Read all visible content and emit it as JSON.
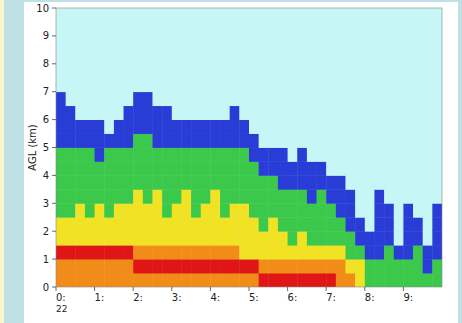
{
  "chart_data": {
    "type": "heatmap",
    "ylabel": "AGL (km)",
    "xlim": [
      0,
      10
    ],
    "xticks": [
      {
        "value": 0,
        "label": "0:"
      },
      {
        "value": 1,
        "label": "1:"
      },
      {
        "value": 2,
        "label": "2:"
      },
      {
        "value": 3,
        "label": "3:"
      },
      {
        "value": 4,
        "label": "4:"
      },
      {
        "value": 5,
        "label": "5:"
      },
      {
        "value": 6,
        "label": "6:"
      },
      {
        "value": 7,
        "label": "7:"
      },
      {
        "value": 8,
        "label": "8:"
      },
      {
        "value": 9,
        "label": "9:"
      }
    ],
    "ylim": [
      0,
      10
    ],
    "yticks": [
      0,
      1,
      2,
      3,
      4,
      5,
      6,
      7,
      8,
      9,
      10
    ],
    "annotations": [
      {
        "text": "22",
        "x": 0
      }
    ],
    "colors": [
      "#c6f6f6",
      "#2a3cd6",
      "#3cc84a",
      "#f2e224",
      "#f28c18",
      "#e01616"
    ],
    "xbins": [
      0,
      0.25,
      0.5,
      0.75,
      1,
      1.25,
      1.5,
      1.75,
      2,
      2.25,
      2.5,
      2.75,
      3,
      3.25,
      3.5,
      3.75,
      4,
      4.25,
      4.5,
      4.75,
      5,
      5.25,
      5.5,
      5.75,
      6,
      6.25,
      6.5,
      6.75,
      7,
      7.25,
      7.5,
      7.75,
      8,
      8.25,
      8.5,
      8.75,
      9,
      9.25,
      9.5,
      9.75,
      10
    ],
    "ybins": [
      0,
      0.5,
      1,
      1.5,
      2,
      2.5,
      3,
      3.5,
      4,
      4.5,
      5,
      5.5,
      6,
      6.5,
      7,
      7.5
    ],
    "z": [
      [
        4,
        4,
        5,
        3,
        3,
        2,
        2,
        2,
        2,
        2,
        1,
        1,
        1,
        1,
        0
      ],
      [
        4,
        4,
        5,
        3,
        3,
        2,
        2,
        2,
        2,
        2,
        1,
        1,
        1,
        0,
        0
      ],
      [
        4,
        4,
        5,
        3,
        3,
        3,
        2,
        2,
        2,
        2,
        1,
        1,
        0,
        0,
        0
      ],
      [
        4,
        4,
        5,
        3,
        3,
        2,
        2,
        2,
        2,
        2,
        1,
        1,
        0,
        0,
        0
      ],
      [
        4,
        4,
        5,
        3,
        3,
        3,
        2,
        2,
        2,
        1,
        1,
        1,
        0,
        0,
        0
      ],
      [
        4,
        4,
        5,
        3,
        3,
        2,
        2,
        2,
        2,
        2,
        1,
        0,
        0,
        0,
        0
      ],
      [
        4,
        4,
        5,
        3,
        3,
        3,
        2,
        2,
        2,
        2,
        1,
        1,
        0,
        0,
        0
      ],
      [
        4,
        4,
        5,
        3,
        3,
        3,
        2,
        2,
        2,
        2,
        1,
        1,
        1,
        0,
        0
      ],
      [
        4,
        5,
        4,
        3,
        3,
        3,
        3,
        2,
        2,
        2,
        2,
        1,
        1,
        1,
        0
      ],
      [
        4,
        5,
        4,
        3,
        3,
        3,
        2,
        2,
        2,
        2,
        2,
        1,
        1,
        1,
        0
      ],
      [
        4,
        5,
        4,
        3,
        3,
        3,
        3,
        2,
        2,
        2,
        1,
        1,
        1,
        0,
        0
      ],
      [
        4,
        5,
        4,
        3,
        3,
        2,
        2,
        2,
        2,
        2,
        1,
        1,
        1,
        0,
        0
      ],
      [
        4,
        5,
        4,
        3,
        3,
        3,
        2,
        2,
        2,
        2,
        1,
        1,
        0,
        0,
        0
      ],
      [
        4,
        5,
        4,
        3,
        3,
        3,
        3,
        2,
        2,
        2,
        1,
        1,
        0,
        0,
        0
      ],
      [
        4,
        5,
        4,
        3,
        3,
        2,
        2,
        2,
        2,
        2,
        1,
        1,
        0,
        0,
        0
      ],
      [
        4,
        5,
        4,
        3,
        3,
        3,
        2,
        2,
        2,
        2,
        1,
        1,
        0,
        0,
        0
      ],
      [
        4,
        5,
        4,
        3,
        3,
        3,
        3,
        2,
        2,
        2,
        1,
        1,
        0,
        0,
        0
      ],
      [
        4,
        5,
        4,
        3,
        3,
        2,
        2,
        2,
        2,
        2,
        1,
        1,
        0,
        0,
        0
      ],
      [
        4,
        5,
        4,
        3,
        3,
        3,
        2,
        2,
        2,
        2,
        1,
        1,
        1,
        0,
        0
      ],
      [
        4,
        5,
        3,
        3,
        3,
        3,
        2,
        2,
        2,
        2,
        1,
        1,
        0,
        0,
        0
      ],
      [
        4,
        5,
        3,
        3,
        3,
        2,
        2,
        2,
        2,
        1,
        1,
        0,
        0,
        0,
        0
      ],
      [
        5,
        4,
        3,
        3,
        2,
        2,
        2,
        2,
        1,
        1,
        0,
        0,
        0,
        0,
        0
      ],
      [
        5,
        4,
        3,
        3,
        3,
        2,
        2,
        2,
        1,
        1,
        0,
        0,
        0,
        0,
        0
      ],
      [
        5,
        4,
        3,
        3,
        2,
        2,
        2,
        1,
        1,
        1,
        0,
        0,
        0,
        0,
        0
      ],
      [
        5,
        4,
        3,
        2,
        2,
        2,
        2,
        1,
        1,
        0,
        0,
        0,
        0,
        0,
        0
      ],
      [
        5,
        4,
        3,
        3,
        2,
        2,
        2,
        1,
        1,
        1,
        0,
        0,
        0,
        0,
        0
      ],
      [
        5,
        4,
        3,
        2,
        2,
        2,
        1,
        1,
        1,
        0,
        0,
        0,
        0,
        0,
        0
      ],
      [
        5,
        4,
        3,
        2,
        2,
        2,
        2,
        1,
        1,
        0,
        0,
        0,
        0,
        0,
        0
      ],
      [
        5,
        4,
        3,
        2,
        2,
        2,
        1,
        1,
        0,
        0,
        0,
        0,
        0,
        0,
        0
      ],
      [
        4,
        4,
        3,
        2,
        2,
        1,
        1,
        1,
        0,
        0,
        0,
        0,
        0,
        0,
        0
      ],
      [
        4,
        3,
        2,
        2,
        1,
        1,
        1,
        0,
        0,
        0,
        0,
        0,
        0,
        0,
        0
      ],
      [
        3,
        3,
        2,
        1,
        1,
        0,
        0,
        0,
        0,
        0,
        0,
        0,
        0,
        0,
        0
      ],
      [
        2,
        2,
        1,
        1,
        0,
        0,
        0,
        0,
        0,
        0,
        0,
        0,
        0,
        0,
        0
      ],
      [
        2,
        2,
        1,
        1,
        1,
        1,
        1,
        0,
        0,
        0,
        0,
        0,
        0,
        0,
        0
      ],
      [
        2,
        2,
        2,
        1,
        1,
        1,
        0,
        0,
        0,
        0,
        0,
        0,
        0,
        0,
        0
      ],
      [
        2,
        2,
        1,
        0,
        0,
        0,
        0,
        0,
        0,
        0,
        0,
        0,
        0,
        0,
        0
      ],
      [
        2,
        2,
        1,
        1,
        1,
        1,
        0,
        0,
        0,
        0,
        0,
        0,
        0,
        0,
        0
      ],
      [
        2,
        2,
        2,
        1,
        1,
        0,
        0,
        0,
        0,
        0,
        0,
        0,
        0,
        0,
        0
      ],
      [
        2,
        1,
        1,
        0,
        0,
        0,
        0,
        0,
        0,
        0,
        0,
        0,
        0,
        0,
        0
      ],
      [
        2,
        2,
        1,
        1,
        1,
        1,
        0,
        0,
        0,
        0,
        0,
        0,
        0,
        0,
        0
      ]
    ]
  }
}
